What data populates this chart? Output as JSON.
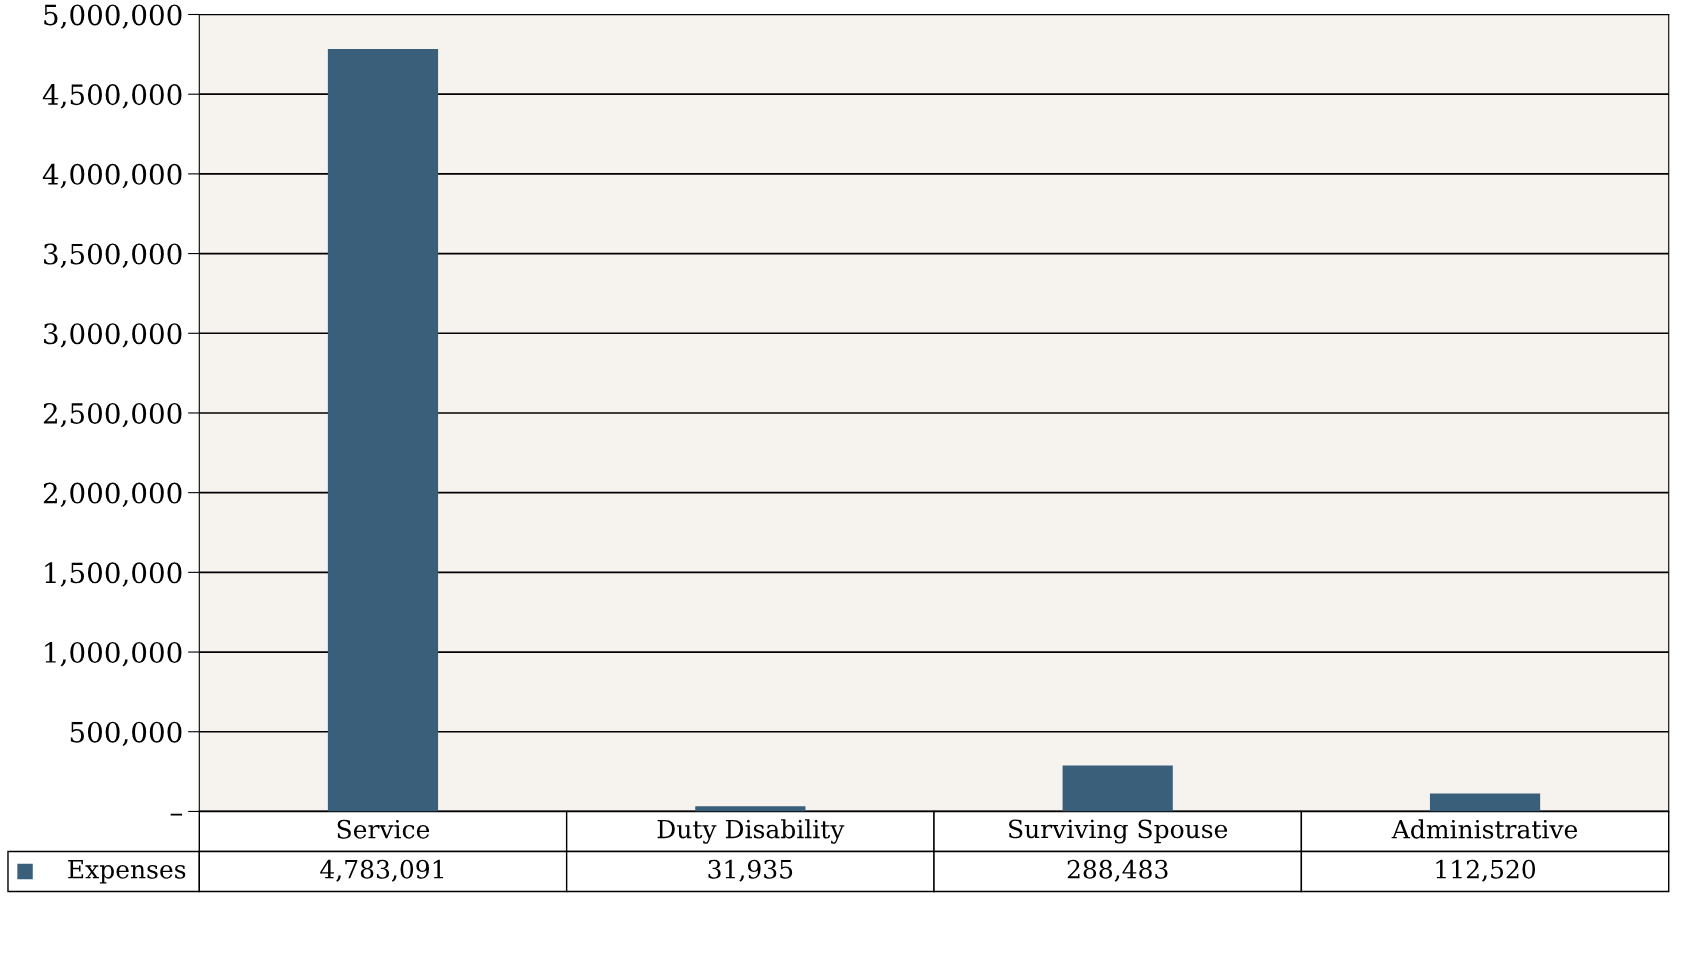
{
  "chart_data": {
    "type": "bar",
    "categories": [
      "Service",
      "Duty Disability",
      "Surviving Spouse",
      "Administrative"
    ],
    "series": [
      {
        "name": "Expenses",
        "color": "#3a5f7a",
        "values": [
          4783091,
          31935,
          288483,
          112520
        ],
        "value_labels": [
          "4,783,091",
          "31,935",
          "288,483",
          "112,520"
        ]
      }
    ],
    "ylim": [
      0,
      5000000
    ],
    "yticks": [
      {
        "value": 0,
        "label": "–"
      },
      {
        "value": 500000,
        "label": "500,000"
      },
      {
        "value": 1000000,
        "label": "1,000,000"
      },
      {
        "value": 1500000,
        "label": "1,500,000"
      },
      {
        "value": 2000000,
        "label": "2,000,000"
      },
      {
        "value": 2500000,
        "label": "2,500,000"
      },
      {
        "value": 3000000,
        "label": "3,000,000"
      },
      {
        "value": 3500000,
        "label": "3,500,000"
      },
      {
        "value": 4000000,
        "label": "4,000,000"
      },
      {
        "value": 4500000,
        "label": "4,500,000"
      },
      {
        "value": 5000000,
        "label": "5,000,000"
      }
    ],
    "grid": "y",
    "legend": "bottom left"
  }
}
